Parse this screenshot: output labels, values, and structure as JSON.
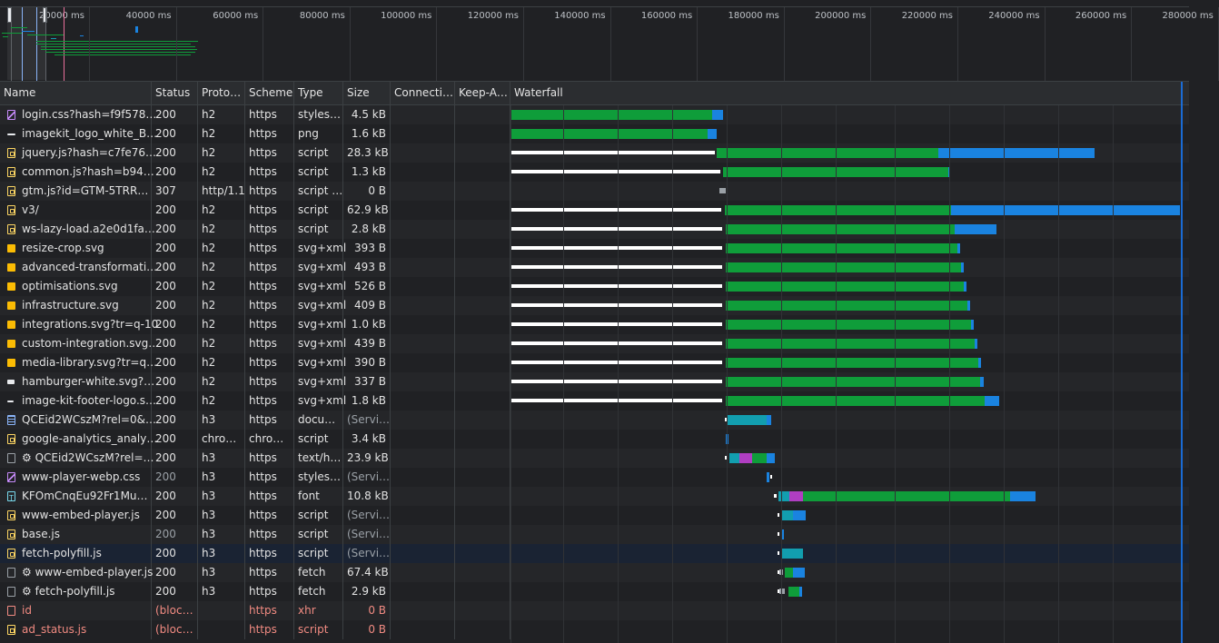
{
  "overview": {
    "ticks": [
      "20000 ms",
      "40000 ms",
      "60000 ms",
      "80000 ms",
      "100000 ms",
      "120000 ms",
      "140000 ms",
      "160000 ms",
      "180000 ms",
      "200000 ms",
      "220000 ms",
      "240000 ms",
      "260000 ms",
      "280000 ms"
    ]
  },
  "columns": {
    "name": "Name",
    "status": "Status",
    "protocol": "Proto…",
    "scheme": "Scheme",
    "type": "Type",
    "size": "Size",
    "connection": "Connecti…",
    "keepalive": "Keep-A…",
    "waterfall": "Waterfall"
  },
  "requests": [
    {
      "icon": "css",
      "name": "login.css?hash=f9f578…",
      "status": "200",
      "protocol": "h2",
      "scheme": "https",
      "type": "styles…",
      "size": "4.5 kB"
    },
    {
      "icon": "line",
      "name": "imagekit_logo_white_B…",
      "status": "200",
      "protocol": "h2",
      "scheme": "https",
      "type": "png",
      "size": "1.6 kB"
    },
    {
      "icon": "js",
      "name": "jquery.js?hash=c7fe76…",
      "status": "200",
      "protocol": "h2",
      "scheme": "https",
      "type": "script",
      "size": "28.3 kB"
    },
    {
      "icon": "js",
      "name": "common.js?hash=b94…",
      "status": "200",
      "protocol": "h2",
      "scheme": "https",
      "type": "script",
      "size": "1.3 kB"
    },
    {
      "icon": "js",
      "name": "gtm.js?id=GTM-5TRR…",
      "status": "307",
      "protocol": "http/1.1",
      "scheme": "https",
      "type": "script …",
      "size": "0 B"
    },
    {
      "icon": "js",
      "name": "v3/",
      "status": "200",
      "protocol": "h2",
      "scheme": "https",
      "type": "script",
      "size": "62.9 kB"
    },
    {
      "icon": "js",
      "name": "ws-lazy-load.a2e0d1fa…",
      "status": "200",
      "protocol": "h2",
      "scheme": "https",
      "type": "script",
      "size": "2.8 kB"
    },
    {
      "icon": "img",
      "name": "resize-crop.svg",
      "status": "200",
      "protocol": "h2",
      "scheme": "https",
      "type": "svg+xml",
      "size": "393 B"
    },
    {
      "icon": "img",
      "name": "advanced-transformati…",
      "status": "200",
      "protocol": "h2",
      "scheme": "https",
      "type": "svg+xml",
      "size": "493 B"
    },
    {
      "icon": "img",
      "name": "optimisations.svg",
      "status": "200",
      "protocol": "h2",
      "scheme": "https",
      "type": "svg+xml",
      "size": "526 B"
    },
    {
      "icon": "img",
      "name": "infrastructure.svg",
      "status": "200",
      "protocol": "h2",
      "scheme": "https",
      "type": "svg+xml",
      "size": "409 B"
    },
    {
      "icon": "img",
      "name": "integrations.svg?tr=q-10",
      "status": "200",
      "protocol": "h2",
      "scheme": "https",
      "type": "svg+xml",
      "size": "1.0 kB"
    },
    {
      "icon": "img",
      "name": "custom-integration.svg…",
      "status": "200",
      "protocol": "h2",
      "scheme": "https",
      "type": "svg+xml",
      "size": "439 B"
    },
    {
      "icon": "img",
      "name": "media-library.svg?tr=q…",
      "status": "200",
      "protocol": "h2",
      "scheme": "https",
      "type": "svg+xml",
      "size": "390 B"
    },
    {
      "icon": "whiterect",
      "name": "hamburger-white.svg?…",
      "status": "200",
      "protocol": "h2",
      "scheme": "https",
      "type": "svg+xml",
      "size": "337 B"
    },
    {
      "icon": "lineshort",
      "name": "image-kit-footer-logo.s…",
      "status": "200",
      "protocol": "h2",
      "scheme": "https",
      "type": "svg+xml",
      "size": "1.8 kB"
    },
    {
      "icon": "doc",
      "name": "QCEid2WCszM?rel=0&…",
      "status": "200",
      "protocol": "h3",
      "scheme": "https",
      "type": "docu…",
      "size": "(Servi…"
    },
    {
      "icon": "js",
      "name": "google-analytics_analy…",
      "status": "200",
      "protocol": "chro…",
      "scheme": "chro…",
      "type": "script",
      "size": "3.4 kB"
    },
    {
      "icon": "blank",
      "name": "⚙ QCEid2WCszM?rel=…",
      "status": "200",
      "protocol": "h3",
      "scheme": "https",
      "type": "text/h…",
      "size": "23.9 kB"
    },
    {
      "icon": "css",
      "name": "www-player-webp.css",
      "status": "200",
      "protocol": "h3",
      "scheme": "https",
      "type": "styles…",
      "size": "(Servi…"
    },
    {
      "icon": "font",
      "name": "KFOmCnqEu92Fr1Mu…",
      "status": "200",
      "protocol": "h3",
      "scheme": "https",
      "type": "font",
      "size": "10.8 kB"
    },
    {
      "icon": "js",
      "name": "www-embed-player.js",
      "status": "200",
      "protocol": "h3",
      "scheme": "https",
      "type": "script",
      "size": "(Servi…"
    },
    {
      "icon": "js",
      "name": "base.js",
      "status": "200",
      "protocol": "h3",
      "scheme": "https",
      "type": "script",
      "size": "(Servi…"
    },
    {
      "icon": "js",
      "name": "fetch-polyfill.js",
      "status": "200",
      "protocol": "h3",
      "scheme": "https",
      "type": "script",
      "size": "(Servi…"
    },
    {
      "icon": "blank",
      "name": "⚙ www-embed-player.js",
      "status": "200",
      "protocol": "h3",
      "scheme": "https",
      "type": "fetch",
      "size": "67.4 kB"
    },
    {
      "icon": "blank",
      "name": "⚙ fetch-polyfill.js",
      "status": "200",
      "protocol": "h3",
      "scheme": "https",
      "type": "fetch",
      "size": "2.9 kB"
    },
    {
      "icon": "blank-red",
      "name": "id",
      "status": "(bloc…",
      "protocol": "",
      "scheme": "https",
      "type": "xhr",
      "size": "0 B",
      "error": true
    },
    {
      "icon": "js-red",
      "name": "ad_status.js",
      "status": "(bloc…",
      "protocol": "",
      "scheme": "https",
      "type": "script",
      "size": "0 B",
      "error": true
    }
  ],
  "colors": {
    "waiting": "#ffffff",
    "ttfb": "#0f9d3a",
    "download": "#1a83e0",
    "stalled": "#9aa0a6",
    "ssl": "#b03ec2",
    "connect": "#129eaf"
  },
  "waterfall_timing": [
    {
      "segments": [
        [
          "ttfb",
          0,
          222
        ],
        [
          "download",
          222,
          234
        ]
      ]
    },
    {
      "segments": [
        [
          "ttfb",
          0,
          217
        ],
        [
          "download",
          217,
          227
        ]
      ]
    },
    {
      "segments": [
        [
          "waiting",
          0,
          225
        ],
        [
          "ttfb",
          227,
          471
        ],
        [
          "download",
          471,
          643
        ]
      ]
    },
    {
      "segments": [
        [
          "waiting",
          0,
          231
        ],
        [
          "ttfb",
          234,
          482
        ],
        [
          "download",
          482,
          484
        ]
      ]
    },
    {
      "segments": [
        [
          "stalled",
          230,
          237
        ]
      ]
    },
    {
      "segments": [
        [
          "waiting",
          0,
          232
        ],
        [
          "ttfb",
          236,
          485
        ],
        [
          "download",
          485,
          737
        ]
      ]
    },
    {
      "segments": [
        [
          "waiting",
          0,
          233
        ],
        [
          "ttfb",
          237,
          489
        ],
        [
          "download",
          489,
          535
        ]
      ]
    },
    {
      "segments": [
        [
          "waiting",
          0,
          233
        ],
        [
          "ttfb",
          237,
          492
        ],
        [
          "download",
          492,
          495
        ]
      ]
    },
    {
      "segments": [
        [
          "waiting",
          0,
          233
        ],
        [
          "ttfb",
          237,
          496
        ],
        [
          "download",
          496,
          499
        ]
      ]
    },
    {
      "segments": [
        [
          "waiting",
          0,
          233
        ],
        [
          "ttfb",
          237,
          499
        ],
        [
          "download",
          499,
          502
        ]
      ]
    },
    {
      "segments": [
        [
          "waiting",
          0,
          233
        ],
        [
          "ttfb",
          237,
          503
        ],
        [
          "download",
          503,
          506
        ]
      ]
    },
    {
      "segments": [
        [
          "waiting",
          0,
          233
        ],
        [
          "ttfb",
          237,
          507
        ],
        [
          "download",
          507,
          510
        ]
      ]
    },
    {
      "segments": [
        [
          "waiting",
          0,
          233
        ],
        [
          "ttfb",
          237,
          511
        ],
        [
          "download",
          511,
          514
        ]
      ]
    },
    {
      "segments": [
        [
          "waiting",
          0,
          233
        ],
        [
          "ttfb",
          237,
          515
        ],
        [
          "download",
          515,
          518
        ]
      ]
    },
    {
      "segments": [
        [
          "waiting",
          0,
          233
        ],
        [
          "ttfb",
          237,
          517
        ],
        [
          "download",
          517,
          521
        ]
      ]
    },
    {
      "segments": [
        [
          "waiting",
          0,
          233
        ],
        [
          "ttfb",
          237,
          522
        ],
        [
          "download",
          522,
          538
        ]
      ]
    },
    {
      "segments": [
        [
          "waiting",
          236,
          238
        ],
        [
          "connect",
          238,
          282
        ],
        [
          "download",
          282,
          287
        ]
      ]
    },
    {
      "segments": [
        [
          "download",
          237,
          240
        ]
      ]
    },
    {
      "segments": [
        [
          "waiting",
          236,
          239
        ],
        [
          "connect",
          241,
          252
        ],
        [
          "ssl",
          252,
          266
        ],
        [
          "ttfb",
          266,
          282
        ],
        [
          "download",
          282,
          291
        ]
      ]
    },
    {
      "segments": [
        [
          "download",
          282,
          285
        ],
        [
          "waiting",
          286,
          287
        ]
      ]
    },
    {
      "segments": [
        [
          "waiting",
          290,
          293
        ],
        [
          "connect",
          295,
          307
        ],
        [
          "ssl",
          307,
          322
        ],
        [
          "ttfb",
          322,
          550
        ],
        [
          "download",
          550,
          578
        ]
      ]
    },
    {
      "segments": [
        [
          "waiting",
          294,
          296
        ],
        [
          "connect",
          298,
          311
        ],
        [
          "download",
          311,
          325
        ]
      ]
    },
    {
      "segments": [
        [
          "waiting",
          294,
          296
        ],
        [
          "download",
          298,
          301
        ]
      ]
    },
    {
      "segments": [
        [
          "waiting",
          294,
          296
        ],
        [
          "connect",
          298,
          322
        ]
      ]
    },
    {
      "segments": [
        [
          "waiting",
          294,
          296
        ],
        [
          "stalled",
          296,
          300
        ],
        [
          "ttfb",
          302,
          311
        ],
        [
          "download",
          311,
          324
        ]
      ]
    },
    {
      "segments": [
        [
          "waiting",
          294,
          296
        ],
        [
          "stalled",
          296,
          302
        ],
        [
          "ttfb",
          306,
          318
        ],
        [
          "download",
          318,
          321
        ]
      ]
    },
    {
      "segments": []
    },
    {
      "segments": []
    }
  ]
}
